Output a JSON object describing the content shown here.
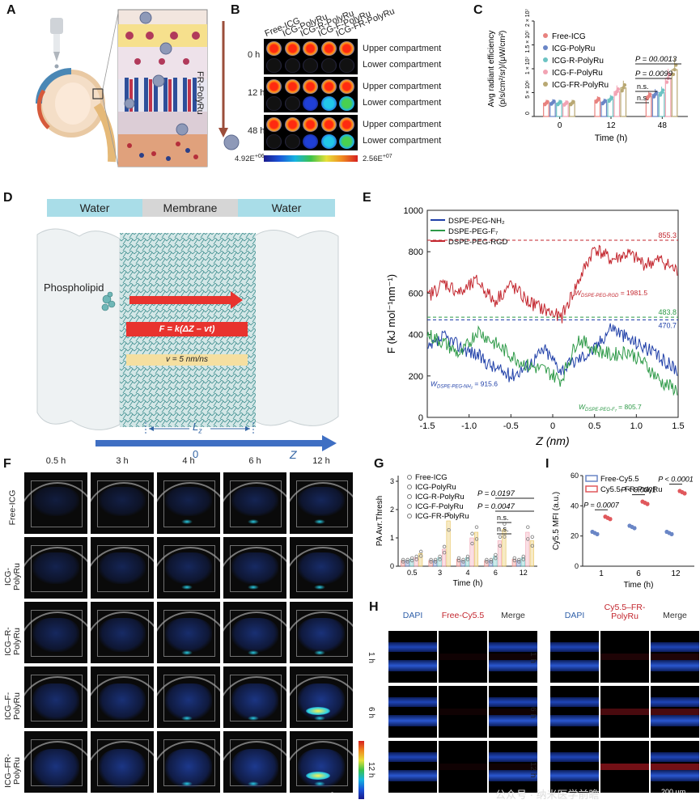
{
  "labels": {
    "A": "A",
    "B": "B",
    "C": "C",
    "D": "D",
    "E": "E",
    "F": "F",
    "G": "G",
    "H": "H",
    "I": "I"
  },
  "panelA": {
    "arrow_label": "FR-PolyRu"
  },
  "panelB": {
    "columns": [
      "Free-ICG",
      "ICG-PolyRu",
      "ICG-R-PolyRu",
      "ICG-F-PolyRu",
      "ICG-FR-PolyRu"
    ],
    "rows": [
      {
        "time": "0 h",
        "upper": "Upper compartment",
        "lower": "Lower compartment"
      },
      {
        "time": "12 h",
        "upper": "Upper compartment",
        "lower": "Lower compartment"
      },
      {
        "time": "48 h",
        "upper": "Upper compartment",
        "lower": "Lower compartment"
      }
    ],
    "scale_min": "4.92E",
    "scale_min_exp": "+06",
    "scale_max": "2.56E",
    "scale_max_exp": "+07"
  },
  "panelC": {
    "chart_data": {
      "type": "bar",
      "categories": [
        "0",
        "12",
        "48"
      ],
      "xlabel": "Time (h)",
      "ylabel_line1": "Avg radiant efficiency",
      "ylabel_line2": "(p/s/cm²/sr)/(μW/cm²)",
      "ytick_labels": [
        "0",
        "5 × 10⁶",
        "1 × 10⁷",
        "1.5 × 10⁷",
        "2 × 10⁷"
      ],
      "yticks": [
        0,
        5000000,
        10000000,
        15000000,
        20000000
      ],
      "ylim": [
        0,
        20000000
      ],
      "series": [
        {
          "name": "Free-ICG",
          "color": "#e8827f",
          "values": [
            2800000,
            3400000,
            4200000
          ]
        },
        {
          "name": "ICG-PolyRu",
          "color": "#6a86c6",
          "values": [
            2900000,
            3000000,
            4600000
          ]
        },
        {
          "name": "ICG-R-PolyRu",
          "color": "#6cc3c3",
          "values": [
            2800000,
            3600000,
            5000000
          ]
        },
        {
          "name": "ICG-F-PolyRu",
          "color": "#f2a3b3",
          "values": [
            2700000,
            5200000,
            8000000
          ]
        },
        {
          "name": "ICG-FR-PolyRu",
          "color": "#b9a873",
          "values": [
            2800000,
            6000000,
            9800000
          ]
        }
      ],
      "annotations": [
        "P = 00.0013",
        "P = 0.0099",
        "n.s.",
        "n.s."
      ]
    }
  },
  "panelD": {
    "water_left": "Water",
    "membrane": "Membrane",
    "water_right": "Water",
    "phospholipid": "Phospholipid",
    "formula": "F = k(ΔZ – vt)",
    "velocity": "v = 5 nm/ns",
    "lz": "L",
    "lz_sub": "z",
    "zero": "0",
    "z": "Z"
  },
  "panelE": {
    "chart_data": {
      "type": "line",
      "xlabel": "Z (nm)",
      "ylabel": "F (kJ mol⁻¹nm⁻¹)",
      "xlim": [
        -1.5,
        1.5
      ],
      "ylim": [
        0,
        1000
      ],
      "xticks": [
        "-1.5",
        "-1.0",
        "-0.5",
        "0",
        "0.5",
        "1.0",
        "1.5"
      ],
      "yticks": [
        "0",
        "200",
        "400",
        "600",
        "800",
        "1000"
      ],
      "series": [
        {
          "name": "DSPE-PEG-NH₂",
          "color": "#1f3fa8",
          "x": [
            -1.5,
            -1.3,
            -1.1,
            -0.9,
            -0.7,
            -0.5,
            -0.3,
            -0.1,
            0.1,
            0.3,
            0.5,
            0.7,
            0.9,
            1.1,
            1.3,
            1.5
          ],
          "y": [
            320,
            390,
            340,
            300,
            240,
            200,
            250,
            330,
            230,
            280,
            330,
            440,
            380,
            340,
            280,
            230
          ]
        },
        {
          "name": "DSPE-PEG-F₇",
          "color": "#2e9a48",
          "x": [
            -1.5,
            -1.3,
            -1.1,
            -0.9,
            -0.7,
            -0.5,
            -0.3,
            -0.1,
            0.1,
            0.3,
            0.5,
            0.7,
            0.9,
            1.1,
            1.3,
            1.5
          ],
          "y": [
            400,
            360,
            300,
            420,
            360,
            300,
            250,
            230,
            180,
            380,
            330,
            300,
            320,
            260,
            170,
            130
          ]
        },
        {
          "name": "DSPE-PEG-RGD",
          "color": "#c3262e",
          "x": [
            -1.5,
            -1.3,
            -1.1,
            -0.9,
            -0.7,
            -0.5,
            -0.3,
            -0.1,
            0.1,
            0.3,
            0.5,
            0.7,
            0.9,
            1.1,
            1.3,
            1.5
          ],
          "y": [
            580,
            650,
            600,
            660,
            560,
            640,
            560,
            520,
            480,
            650,
            820,
            760,
            790,
            740,
            760,
            700
          ]
        }
      ],
      "ref_values": {
        "nh2": "470.7",
        "f7": "483.8",
        "rgd": "855.3"
      },
      "w_labels": {
        "nh2": {
          "pre": "W",
          "sub": "DSPE-PEG-NH₂",
          "val": " = 915.6"
        },
        "f7": {
          "pre": "W",
          "sub": "DSPE-PEG-F₇",
          "val": " = 805.7"
        },
        "rgd": {
          "pre": "W",
          "sub": "DSPE-PEG-RGD",
          "val": " = 1981.5"
        }
      }
    }
  },
  "panelF": {
    "times": [
      "0.5 h",
      "3 h",
      "4 h",
      "6 h",
      "12 h"
    ],
    "groups": [
      "Free-ICG",
      "ICG-\nPolyRu",
      "ICG–R-\nPolyRu",
      "ICG–F-\nPolyRu",
      "ICG–FR-\nPolyRu"
    ],
    "scale": "2 mm"
  },
  "panelG": {
    "chart_data": {
      "type": "bar",
      "categories": [
        "0.5",
        "3",
        "4",
        "6",
        "12"
      ],
      "xlabel": "Time (h)",
      "ylabel": "PA Avr.Thresh",
      "ylim": [
        0,
        3.2
      ],
      "yticks": [
        "0",
        "1",
        "2",
        "3"
      ],
      "series": [
        {
          "name": "Free-ICG",
          "color": "#e8827f",
          "values": [
            0.2,
            0.2,
            0.25,
            0.2,
            0.25
          ]
        },
        {
          "name": "ICG-PolyRu",
          "color": "#6a86c6",
          "values": [
            0.2,
            0.2,
            0.2,
            0.2,
            0.2
          ]
        },
        {
          "name": "ICG-R-PolyRu",
          "color": "#6cc3c3",
          "values": [
            0.25,
            0.3,
            0.3,
            0.35,
            0.3
          ]
        },
        {
          "name": "ICG-F-PolyRu",
          "color": "#f2a3b3",
          "values": [
            0.3,
            0.6,
            1.0,
            0.9,
            1.2
          ]
        },
        {
          "name": "ICG-FR-PolyRu",
          "color": "#e8c35a",
          "values": [
            0.45,
            1.6,
            1.2,
            1.3,
            0.9
          ]
        }
      ],
      "annotations": {
        "p1": "P = 0.0197",
        "p2": "P = 0.0047",
        "ns1": "n.s.",
        "ns2": "n.s."
      }
    }
  },
  "panelI": {
    "chart_data": {
      "type": "scatter",
      "categories": [
        "1",
        "6",
        "12"
      ],
      "xlabel": "Time (h)",
      "ylabel": "Cy5.5 MFI (a.u.)",
      "ylim": [
        0,
        60
      ],
      "yticks": [
        "0",
        "20",
        "40",
        "60"
      ],
      "series": [
        {
          "name": "Free-Cy5.5",
          "color": "#6a86c6",
          "values": [
            22,
            26,
            22
          ]
        },
        {
          "name": "Cy5.5–FR-PolyRu",
          "color": "#e0585c",
          "values": [
            32,
            42,
            49
          ]
        }
      ],
      "annotations": [
        "P = 0.0007",
        "P < 0.0001",
        "P < 0.0001"
      ]
    }
  },
  "panelH": {
    "left_headers": [
      "DAPI",
      "Free-Cy5.5",
      "Merge"
    ],
    "right_headers": [
      "DAPI",
      "Cy5.5–FR-\nPolyRu",
      "Merge"
    ],
    "rows": [
      "1 h",
      "6 h",
      "12 h"
    ],
    "scale": "200 μm",
    "watermark": "公众号 · 纳米医学前瞻"
  }
}
